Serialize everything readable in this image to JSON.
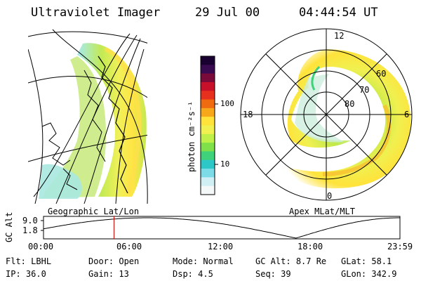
{
  "header": {
    "title": "Ultraviolet Imager",
    "date": "29 Jul 00",
    "time": "04:44:54 UT"
  },
  "colorbar": {
    "unit_label": "photon cm⁻²s⁻¹",
    "ticks": [
      "100",
      "10"
    ],
    "colors": [
      "#1a0030",
      "#3a0a50",
      "#7a0a3a",
      "#c8102a",
      "#e8301e",
      "#f06a10",
      "#f7a81a",
      "#ffe33a",
      "#f0f050",
      "#bff04a",
      "#7fe04a",
      "#3fd27a",
      "#2ec7c7",
      "#7ddbe8",
      "#cfeff5",
      "#f4f8f8"
    ]
  },
  "left_map": {
    "caption": "Geographic Lat/Lon"
  },
  "right_map": {
    "caption": "Apex MLat/MLT",
    "lat_labels": [
      "60",
      "70",
      "80"
    ],
    "mlt_labels": {
      "top": "12",
      "left": "18",
      "right": "6",
      "bottom": "0"
    }
  },
  "altitude_plot": {
    "ylabel": "GC Alt",
    "yticks": [
      "9.0",
      "1.8"
    ],
    "xticks": [
      "00:00",
      "06:00",
      "12:00",
      "18:00",
      "23:59"
    ],
    "marker_hour": 4.75
  },
  "status": {
    "row1": {
      "flt_label": "Flt:",
      "flt_value": "LBHL",
      "door_label": "Door:",
      "door_value": "Open",
      "mode_label": "Mode:",
      "mode_value": "Normal",
      "gcalt_label": "GC Alt:",
      "gcalt_value": "8.7 Re",
      "glat_label": "GLat:",
      "glat_value": "58.1"
    },
    "row2": {
      "ip_label": "IP:",
      "ip_value": "36.0",
      "gain_label": "Gain:",
      "gain_value": "13",
      "dsp_label": "Dsp:",
      "dsp_value": "4.5",
      "seq_label": "Seq:",
      "seq_value": "39",
      "glon_label": "GLon:",
      "glon_value": "342.9"
    }
  }
}
